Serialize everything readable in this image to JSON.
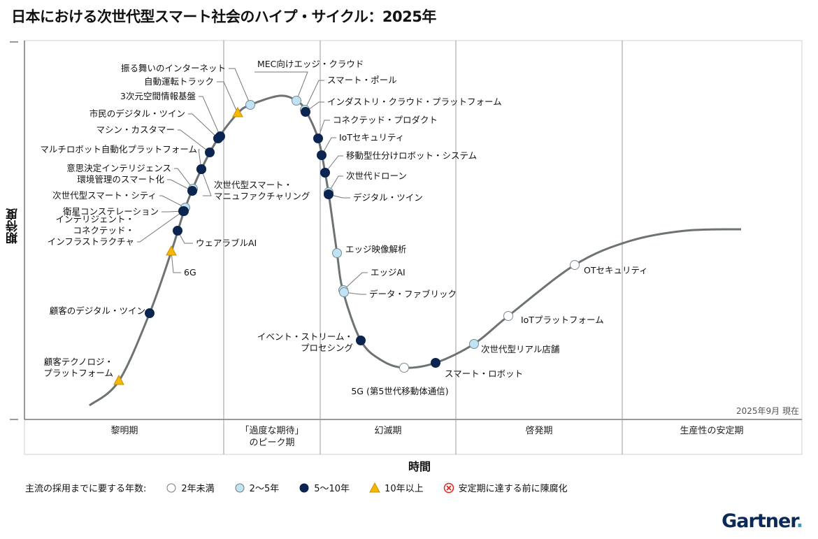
{
  "title": "日本における次世代型スマート社会のハイプ・サイクル：2025年",
  "axes": {
    "y_label": "期待度",
    "x_label": "時間"
  },
  "as_of": "2025年9月 現在",
  "phases": [
    {
      "label_lines": [
        "黎明期"
      ]
    },
    {
      "label_lines": [
        "「過度な期待」",
        "のピーク期"
      ]
    },
    {
      "label_lines": [
        "幻滅期"
      ]
    },
    {
      "label_lines": [
        "啓発期"
      ]
    },
    {
      "label_lines": [
        "生産性の安定期"
      ]
    }
  ],
  "legend": {
    "title": "主流の採用までに要する年数:",
    "items": [
      {
        "key": "lt2",
        "label": "2年未満",
        "color": "#ffffff"
      },
      {
        "key": "2to5",
        "label": "2〜5年",
        "color": "#bfe3f2"
      },
      {
        "key": "5to10",
        "label": "5〜10年",
        "color": "#0b2550"
      },
      {
        "key": "gt10",
        "label": "10年以上",
        "color": "#f5b800"
      },
      {
        "key": "obsolete",
        "label": "安定期に達する前に陳腐化",
        "color": "#e0201b"
      }
    ]
  },
  "technologies": [
    {
      "label_lines": [
        "振る舞いのインターネット"
      ],
      "category": "2to5",
      "phase": "peak"
    },
    {
      "label_lines": [
        "自動運転トラック"
      ],
      "category": "gt10",
      "phase": "peak"
    },
    {
      "label_lines": [
        "3次元空間情報基盤"
      ],
      "category": "5to10",
      "phase": "trigger"
    },
    {
      "label_lines": [
        "市民のデジタル・ツイン"
      ],
      "category": "5to10",
      "phase": "trigger"
    },
    {
      "label_lines": [
        "マシン・カスタマー"
      ],
      "category": "5to10",
      "phase": "trigger"
    },
    {
      "label_lines": [
        "マルチロボット自動化プラットフォーム"
      ],
      "category": "5to10",
      "phase": "trigger"
    },
    {
      "label_lines": [
        "次世代型スマート・",
        "マニュファクチャリング"
      ],
      "category": "5to10",
      "phase": "trigger"
    },
    {
      "label_lines": [
        "意思決定インテリジェンス"
      ],
      "category": "2to5",
      "phase": "trigger"
    },
    {
      "label_lines": [
        "環境管理のスマート化"
      ],
      "category": "5to10",
      "phase": "trigger"
    },
    {
      "label_lines": [
        "次世代型スマート・シティ"
      ],
      "category": "2to5",
      "phase": "trigger"
    },
    {
      "label_lines": [
        "衛星コンステレーション"
      ],
      "category": "5to10",
      "phase": "trigger"
    },
    {
      "label_lines": [
        "インテリジェント・",
        "コネクテッド・",
        "インフラストラクチャ"
      ],
      "category": "5to10",
      "phase": "trigger"
    },
    {
      "label_lines": [
        "ウェアラブルAI"
      ],
      "category": "5to10",
      "phase": "trigger"
    },
    {
      "label_lines": [
        "6G"
      ],
      "category": "gt10",
      "phase": "trigger"
    },
    {
      "label_lines": [
        "顧客のデジタル・ツイン"
      ],
      "category": "5to10",
      "phase": "trigger"
    },
    {
      "label_lines": [
        "顧客テクノロジ・",
        "プラットフォーム"
      ],
      "category": "gt10",
      "phase": "trigger"
    },
    {
      "label_lines": [
        "MEC向けエッジ・クラウド"
      ],
      "category": "2to5",
      "phase": "peak"
    },
    {
      "label_lines": [
        "スマート・ポール"
      ],
      "category": "2to5",
      "phase": "peak"
    },
    {
      "label_lines": [
        "インダストリ・クラウド・プラットフォーム"
      ],
      "category": "5to10",
      "phase": "peak"
    },
    {
      "label_lines": [
        "コネクテッド・プロダクト"
      ],
      "category": "5to10",
      "phase": "trough"
    },
    {
      "label_lines": [
        "IoTセキュリティ"
      ],
      "category": "5to10",
      "phase": "trough"
    },
    {
      "label_lines": [
        "移動型仕分けロボット・システム"
      ],
      "category": "5to10",
      "phase": "trough"
    },
    {
      "label_lines": [
        "次世代ドローン"
      ],
      "category": "2to5",
      "phase": "trough"
    },
    {
      "label_lines": [
        "デジタル・ツイン"
      ],
      "category": "5to10",
      "phase": "trough"
    },
    {
      "label_lines": [
        "エッジ映像解析"
      ],
      "category": "2to5",
      "phase": "trough"
    },
    {
      "label_lines": [
        "エッジAI"
      ],
      "category": "2to5",
      "phase": "trough"
    },
    {
      "label_lines": [
        "データ・ファブリック"
      ],
      "category": "2to5",
      "phase": "trough"
    },
    {
      "label_lines": [
        "イベント・ストリーム・",
        "プロセシング"
      ],
      "category": "5to10",
      "phase": "trough"
    },
    {
      "label_lines": [
        "5G (第5世代移動体通信)"
      ],
      "category": "lt2",
      "phase": "trough"
    },
    {
      "label_lines": [
        "スマート・ロボット"
      ],
      "category": "5to10",
      "phase": "slope"
    },
    {
      "label_lines": [
        "次世代型リアル店舗"
      ],
      "category": "2to5",
      "phase": "slope"
    },
    {
      "label_lines": [
        "IoTプラットフォーム"
      ],
      "category": "lt2",
      "phase": "slope"
    },
    {
      "label_lines": [
        "OTセキュリティ"
      ],
      "category": "lt2",
      "phase": "slope"
    }
  ],
  "brand": {
    "logo_text": "Gartner",
    "logo_dot": "."
  }
}
